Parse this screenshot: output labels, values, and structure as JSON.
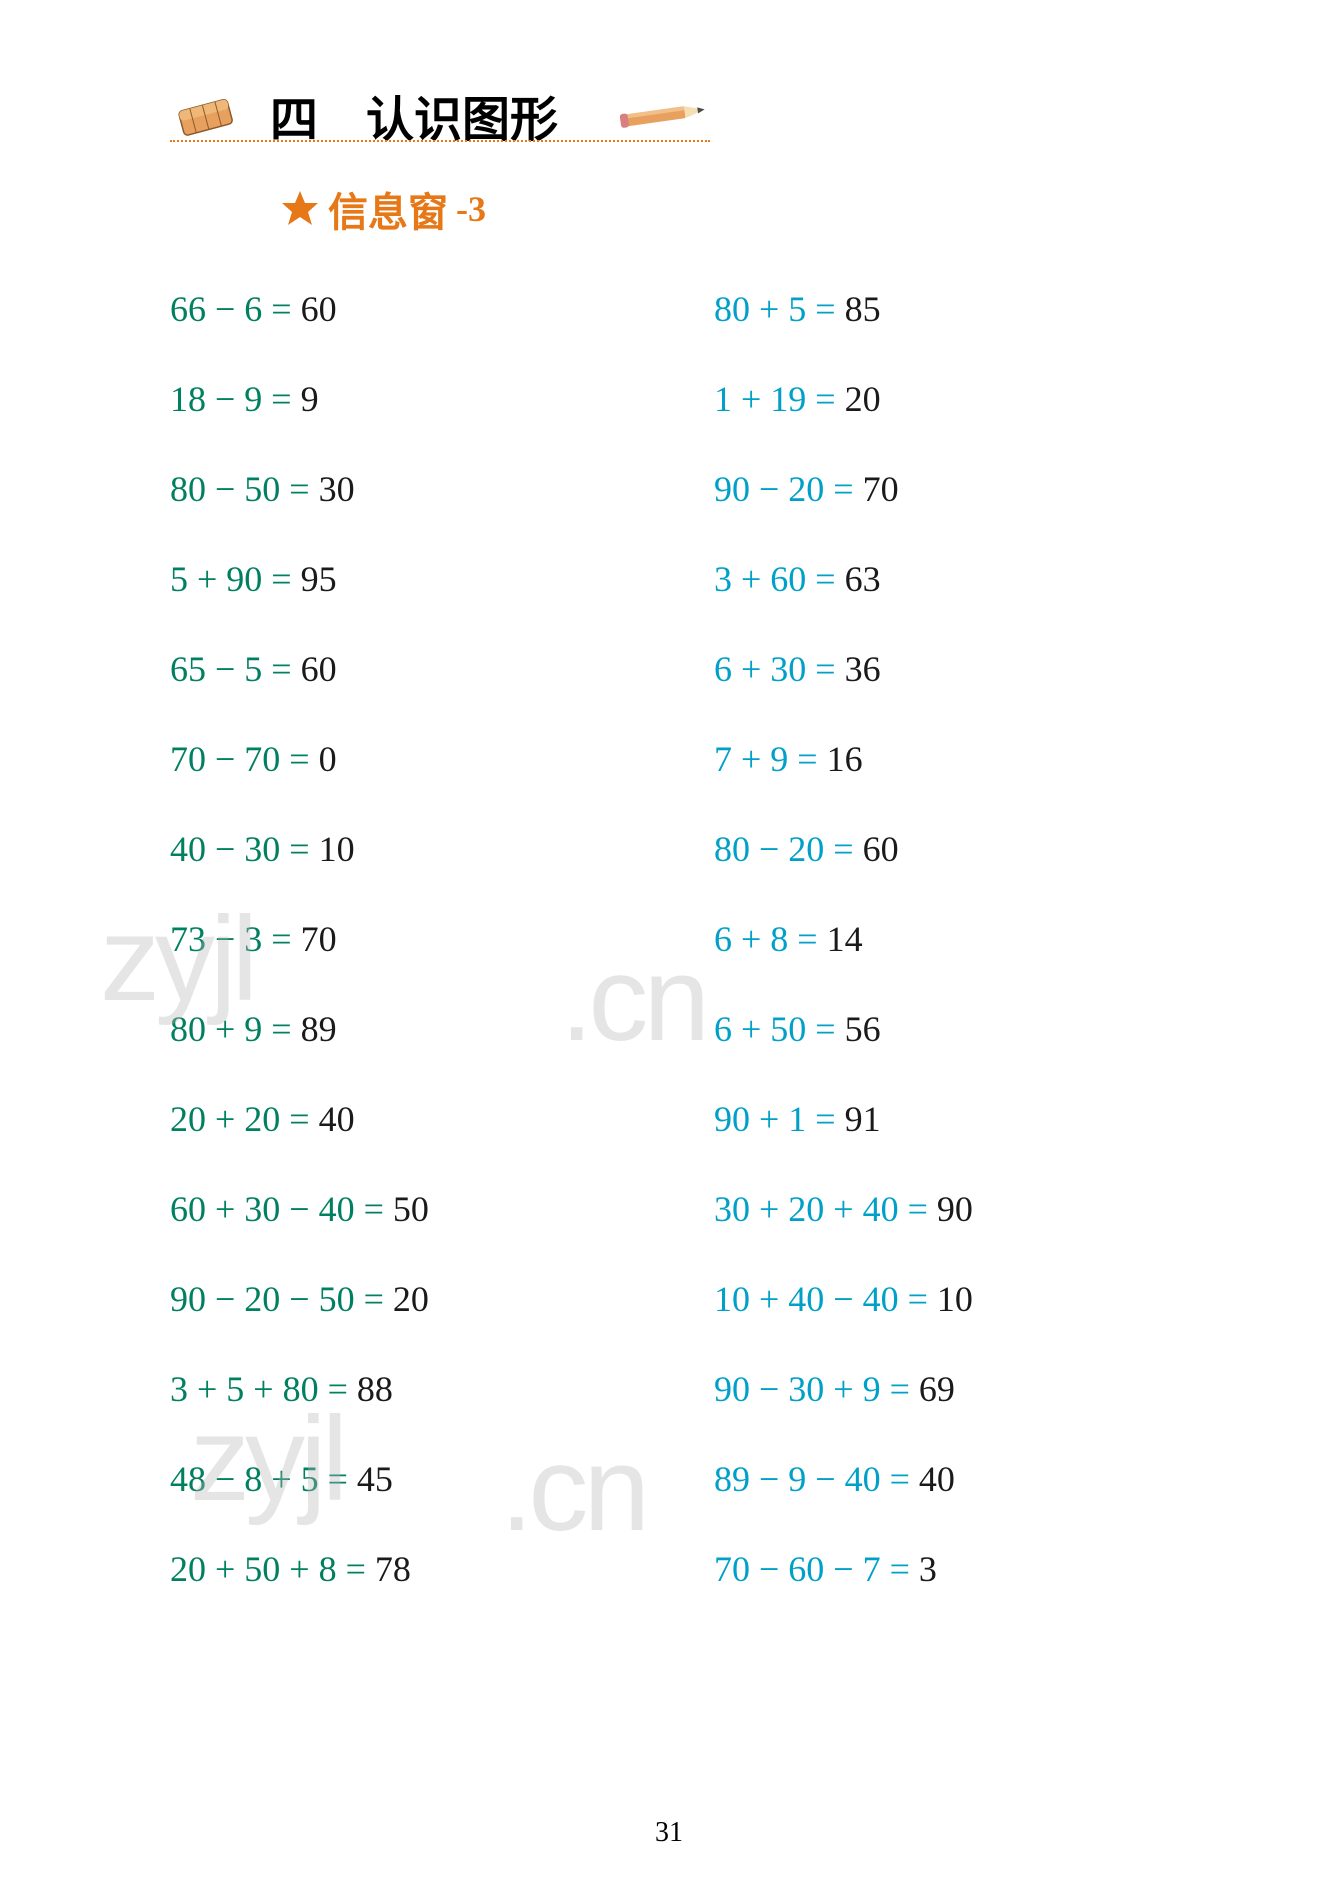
{
  "chapter": {
    "number": "四",
    "title": "认识图形"
  },
  "subtitle": {
    "text": "信息窗",
    "number": "-3"
  },
  "columns": {
    "left": {
      "color": "#008060",
      "problems": [
        {
          "expr": "66 − 6 = ",
          "answer": "60"
        },
        {
          "expr": "18 − 9 = ",
          "answer": "9"
        },
        {
          "expr": "80 − 50 = ",
          "answer": "30"
        },
        {
          "expr": "5 + 90 = ",
          "answer": "95"
        },
        {
          "expr": "65 − 5 = ",
          "answer": "60"
        },
        {
          "expr": "70 − 70 = ",
          "answer": "0"
        },
        {
          "expr": "40 − 30 = ",
          "answer": "10"
        },
        {
          "expr": "73 − 3 = ",
          "answer": "70"
        },
        {
          "expr": "80 + 9 = ",
          "answer": "89"
        },
        {
          "expr": "20 + 20 = ",
          "answer": "40"
        },
        {
          "expr": "60 + 30 − 40 = ",
          "answer": "50"
        },
        {
          "expr": "90 − 20 − 50 = ",
          "answer": "20"
        },
        {
          "expr": "3 + 5 + 80 = ",
          "answer": "88"
        },
        {
          "expr": "48 − 8 + 5 = ",
          "answer": "45"
        },
        {
          "expr": "20 + 50 + 8 = ",
          "answer": "78"
        }
      ]
    },
    "right": {
      "color": "#00a0c8",
      "problems": [
        {
          "expr": "80 + 5 = ",
          "answer": "85"
        },
        {
          "expr": "1 + 19 = ",
          "answer": "20"
        },
        {
          "expr": "90 − 20 = ",
          "answer": "70"
        },
        {
          "expr": "3 + 60 = ",
          "answer": "63"
        },
        {
          "expr": "6 + 30 = ",
          "answer": "36"
        },
        {
          "expr": "7 + 9 = ",
          "answer": "16"
        },
        {
          "expr": "80 − 20 = ",
          "answer": "60"
        },
        {
          "expr": "6 + 8 = ",
          "answer": "14"
        },
        {
          "expr": "6 + 50 = ",
          "answer": "56"
        },
        {
          "expr": "90 + 1 = ",
          "answer": "91"
        },
        {
          "expr": "30 + 20 + 40 = ",
          "answer": "90"
        },
        {
          "expr": "10 + 40 − 40 = ",
          "answer": "10"
        },
        {
          "expr": "90 − 30 + 9 = ",
          "answer": "69"
        },
        {
          "expr": "89 − 9 − 40 = ",
          "answer": "40"
        },
        {
          "expr": "70 − 60 − 7 = ",
          "answer": "3"
        }
      ]
    }
  },
  "watermarks": [
    "zyjl",
    ".cn",
    "zyjl",
    ".cn"
  ],
  "page_number": "31",
  "colors": {
    "title_accent": "#e67817",
    "green_expr": "#008060",
    "blue_expr": "#00a0c8",
    "answer": "#1a1a1a",
    "watermark": "rgba(180,180,180,0.35)"
  }
}
